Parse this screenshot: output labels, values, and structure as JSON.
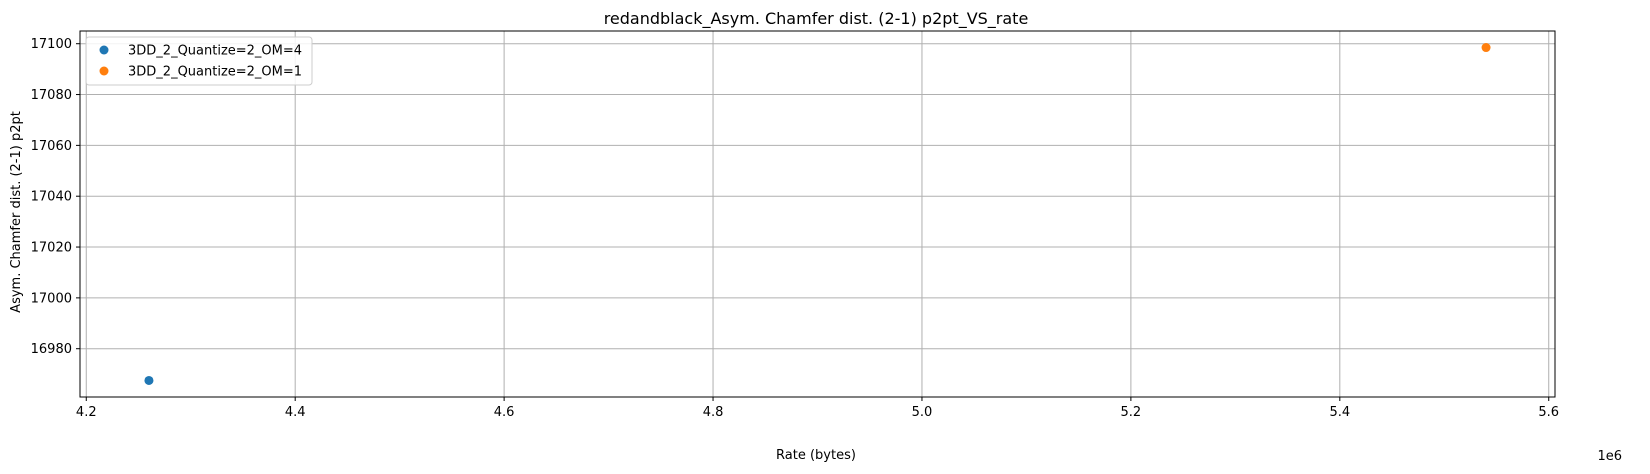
{
  "chart_data": {
    "type": "scatter",
    "title": "redandblack_Asym. Chamfer dist. (2-1) p2pt_VS_rate",
    "xlabel": "Rate (bytes)",
    "ylabel": "Asym. Chamfer dist. (2-1) p2pt",
    "x_offset_text": "1e6",
    "xlim": [
      4.194,
      5.606
    ],
    "ylim": [
      16961,
      17105
    ],
    "x_ticks": [
      4.2,
      4.4,
      4.6,
      4.8,
      5.0,
      5.2,
      5.4,
      5.6
    ],
    "x_tick_labels": [
      "4.2",
      "4.4",
      "4.6",
      "4.8",
      "5.0",
      "5.2",
      "5.4",
      "5.6"
    ],
    "y_ticks": [
      16980,
      17000,
      17020,
      17040,
      17060,
      17080,
      17100
    ],
    "y_tick_labels": [
      "16980",
      "17000",
      "17020",
      "17040",
      "17060",
      "17080",
      "17100"
    ],
    "grid": true,
    "legend_position": "top-left",
    "series": [
      {
        "name": "3DD_2_Quantize=2_OM=4",
        "color": "#1f77b4",
        "points": [
          {
            "x": 4.26,
            "y": 16967.5
          }
        ]
      },
      {
        "name": "3DD_2_Quantize=2_OM=1",
        "color": "#ff7f0e",
        "points": [
          {
            "x": 5.54,
            "y": 17098.5
          }
        ]
      }
    ]
  }
}
